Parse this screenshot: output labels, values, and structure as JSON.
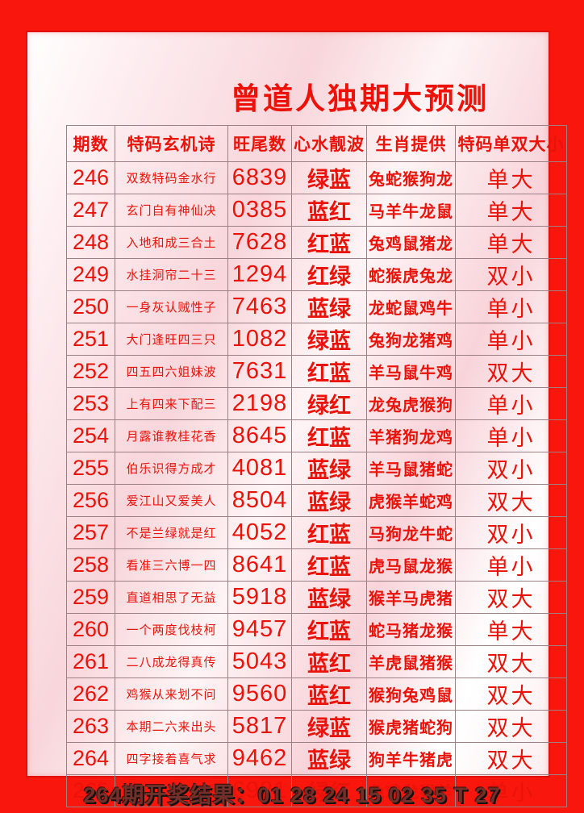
{
  "title": "曾道人独期大预测",
  "colors": {
    "frame_red": "#f9160d",
    "text_red": "#ea130a",
    "panel_pink": "#f8d6db",
    "table_border": "#9b8184",
    "footer_text": "#71302a"
  },
  "table": {
    "headers": [
      "期数",
      "特码玄机诗",
      "旺尾数",
      "心水靓波",
      "生肖提供",
      "特码单双大小"
    ],
    "rows": [
      {
        "period": "246",
        "poem": "双数特码金水行",
        "tail": "6839",
        "wave": "绿蓝",
        "zodiac": "兔蛇猴狗龙",
        "verdict": "单大"
      },
      {
        "period": "247",
        "poem": "玄门自有神仙决",
        "tail": "0385",
        "wave": "蓝红",
        "zodiac": "马羊牛龙鼠",
        "verdict": "单大"
      },
      {
        "period": "248",
        "poem": "入地和成三合土",
        "tail": "7628",
        "wave": "红蓝",
        "zodiac": "兔鸡鼠猪龙",
        "verdict": "单大"
      },
      {
        "period": "249",
        "poem": "水挂洞帘二十三",
        "tail": "1294",
        "wave": "红绿",
        "zodiac": "蛇猴虎兔龙",
        "verdict": "双小"
      },
      {
        "period": "250",
        "poem": "一身灰认贼性子",
        "tail": "7463",
        "wave": "蓝绿",
        "zodiac": "龙蛇鼠鸡牛",
        "verdict": "单小"
      },
      {
        "period": "251",
        "poem": "大门逢旺四三只",
        "tail": "1082",
        "wave": "绿蓝",
        "zodiac": "兔狗龙猪鸡",
        "verdict": "单小"
      },
      {
        "period": "252",
        "poem": "四五四六姐妹波",
        "tail": "7631",
        "wave": "红蓝",
        "zodiac": "羊马鼠牛鸡",
        "verdict": "双大"
      },
      {
        "period": "253",
        "poem": "上有四来下配三",
        "tail": "2198",
        "wave": "绿红",
        "zodiac": "龙兔虎猴狗",
        "verdict": "单小"
      },
      {
        "period": "254",
        "poem": "月露谁教桂花香",
        "tail": "8645",
        "wave": "红蓝",
        "zodiac": "羊猪狗龙鸡",
        "verdict": "单小"
      },
      {
        "period": "255",
        "poem": "伯乐识得方成才",
        "tail": "4081",
        "wave": "蓝绿",
        "zodiac": "羊马鼠猪蛇",
        "verdict": "双小"
      },
      {
        "period": "256",
        "poem": "爱江山又爱美人",
        "tail": "8504",
        "wave": "蓝绿",
        "zodiac": "虎猴羊蛇鸡",
        "verdict": "双大"
      },
      {
        "period": "257",
        "poem": "不是兰绿就是红",
        "tail": "4052",
        "wave": "红蓝",
        "zodiac": "马狗龙牛蛇",
        "verdict": "双小"
      },
      {
        "period": "258",
        "poem": "看准三六博一四",
        "tail": "8641",
        "wave": "红蓝",
        "zodiac": "虎马鼠龙猴",
        "verdict": "单小"
      },
      {
        "period": "259",
        "poem": "直道相思了无益",
        "tail": "5918",
        "wave": "蓝绿",
        "zodiac": "猴羊马虎猪",
        "verdict": "双大"
      },
      {
        "period": "260",
        "poem": "一个两度伐枝柯",
        "tail": "9457",
        "wave": "红蓝",
        "zodiac": "蛇马猪龙猴",
        "verdict": "单大"
      },
      {
        "period": "261",
        "poem": "二八成龙得真传",
        "tail": "5043",
        "wave": "蓝红",
        "zodiac": "羊虎鼠猪猴",
        "verdict": "双大"
      },
      {
        "period": "262",
        "poem": "鸡猴从来划不问",
        "tail": "9560",
        "wave": "蓝红",
        "zodiac": "猴狗兔鸡鼠",
        "verdict": "双大"
      },
      {
        "period": "263",
        "poem": "本期二六来出头",
        "tail": "5817",
        "wave": "绿蓝",
        "zodiac": "猴虎猪蛇狗",
        "verdict": "双大"
      },
      {
        "period": "264",
        "poem": "四字接着喜气求",
        "tail": "9462",
        "wave": "蓝绿",
        "zodiac": "狗羊牛猪虎",
        "verdict": "双大"
      },
      {
        "period": "265",
        "poem": "一名功成千古垂",
        "tail": "6921",
        "wave": "绿红",
        "zodiac": "兔鸡龙猴羊",
        "verdict": "单小"
      }
    ]
  },
  "footer": {
    "text": "264期开奖结果：01 28 24 15 02 35 T 27"
  }
}
